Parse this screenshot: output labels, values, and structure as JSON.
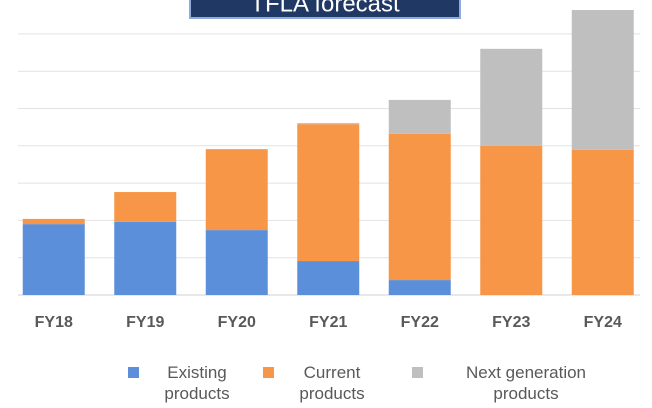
{
  "chart_data": {
    "type": "stacked_bar",
    "title": "TFLA forecast",
    "categories": [
      "FY18",
      "FY19",
      "FY20",
      "FY21",
      "FY22",
      "FY23",
      "FY24"
    ],
    "series": [
      {
        "name": "Existing products",
        "color": "#5b8fd9",
        "values": [
          1.9,
          1.96,
          1.74,
          0.91,
          0.4,
          0,
          0
        ]
      },
      {
        "name": "Current products",
        "color": "#f79646",
        "values": [
          0.14,
          0.8,
          2.17,
          3.67,
          3.92,
          4.0,
          3.89
        ]
      },
      {
        "name": "Next generation products",
        "color": "#bfbfbf",
        "values": [
          0,
          0,
          0,
          0.03,
          0.91,
          2.6,
          3.75
        ]
      }
    ],
    "ylim": [
      0,
      7.9
    ],
    "yticks": [
      0,
      1,
      2,
      3,
      4,
      5,
      6,
      7
    ],
    "grid": true,
    "legend": "bottom"
  }
}
